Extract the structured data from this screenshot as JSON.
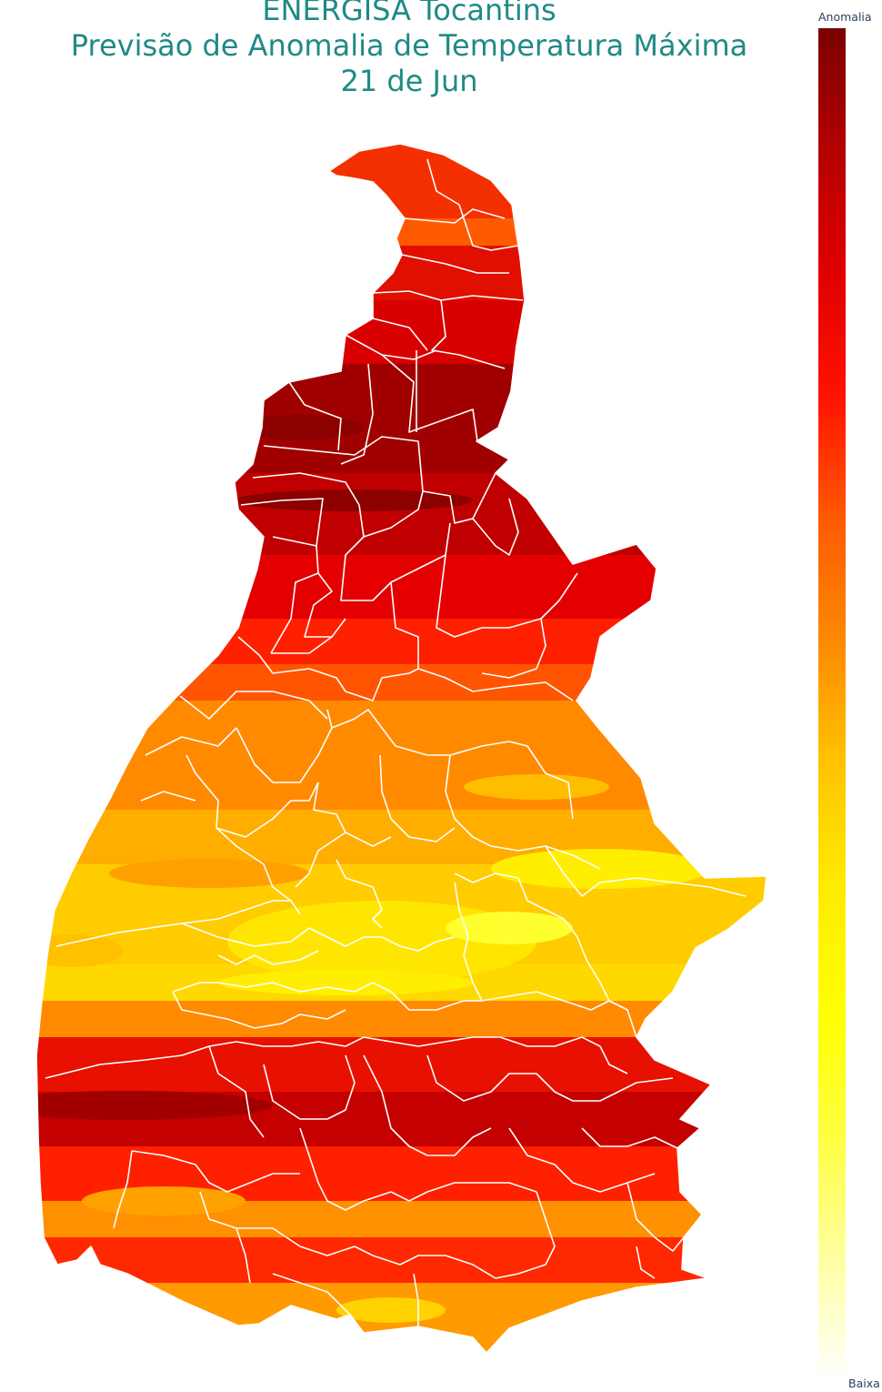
{
  "title": {
    "line1": "ENERGISA Tocantins",
    "line2": "Previsão de Anomalia de Temperatura Máxima",
    "line3": "21 de Jun"
  },
  "colorbar": {
    "top_label": "Anomalia",
    "bottom_label": "Baixa",
    "colors": [
      "#7a0000",
      "#b50000",
      "#e00000",
      "#ff1300",
      "#ff5a00",
      "#ff8a00",
      "#ffc400",
      "#ffec00",
      "#ffff00",
      "#ffff40",
      "#ffffa0",
      "#ffffff"
    ]
  },
  "map": {
    "region": "Tocantins",
    "boundary_color": "#ffffff"
  }
}
